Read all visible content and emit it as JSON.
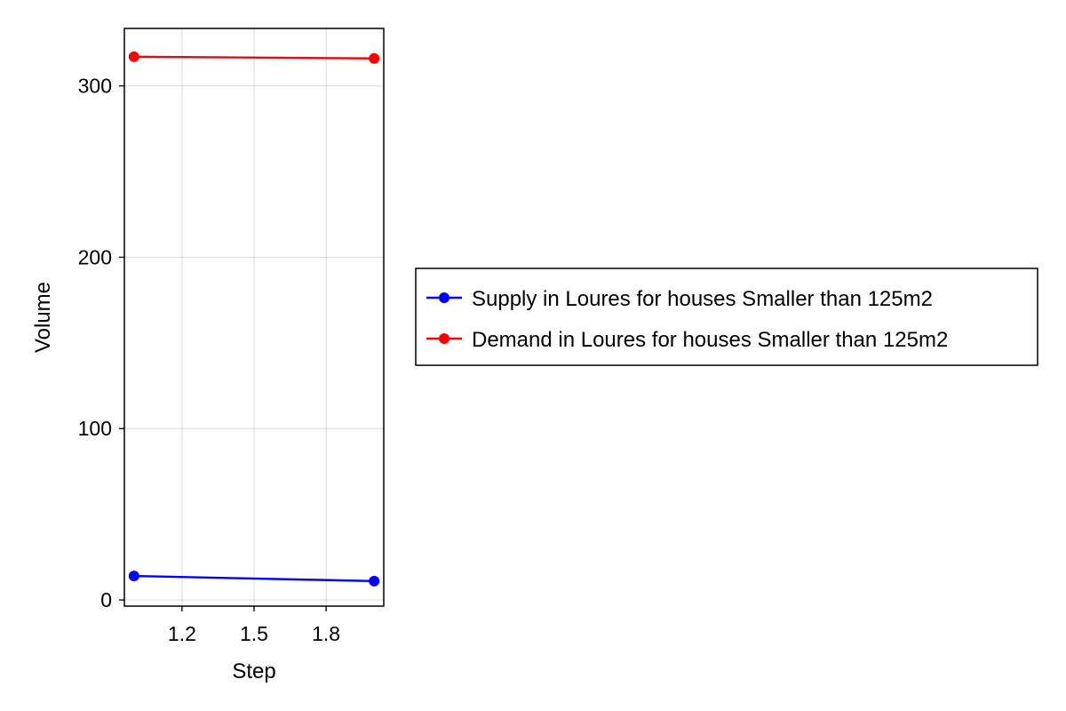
{
  "chart_data": {
    "type": "line",
    "title": "",
    "xlabel": "Step",
    "ylabel": "Volume",
    "xlim": [
      1.0,
      2.0
    ],
    "ylim": [
      0,
      315
    ],
    "xticks": [
      {
        "value": 1.2,
        "label": "1.2"
      },
      {
        "value": 1.5,
        "label": "1.5"
      },
      {
        "value": 1.8,
        "label": "1.8"
      }
    ],
    "yticks": [
      {
        "value": 0,
        "label": "0"
      },
      {
        "value": 100,
        "label": "100"
      },
      {
        "value": 200,
        "label": "200"
      },
      {
        "value": 300,
        "label": "300"
      }
    ],
    "grid": true,
    "legend_position": "right",
    "series": [
      {
        "name": "Supply in Loures for houses Smaller than 125m2",
        "color": "#0000ff",
        "x": [
          1,
          2
        ],
        "y": [
          14,
          11
        ]
      },
      {
        "name": "Demand in Loures for houses Smaller than 125m2",
        "color": "#ff0000",
        "x": [
          1,
          2
        ],
        "y": [
          317,
          316
        ]
      }
    ]
  }
}
